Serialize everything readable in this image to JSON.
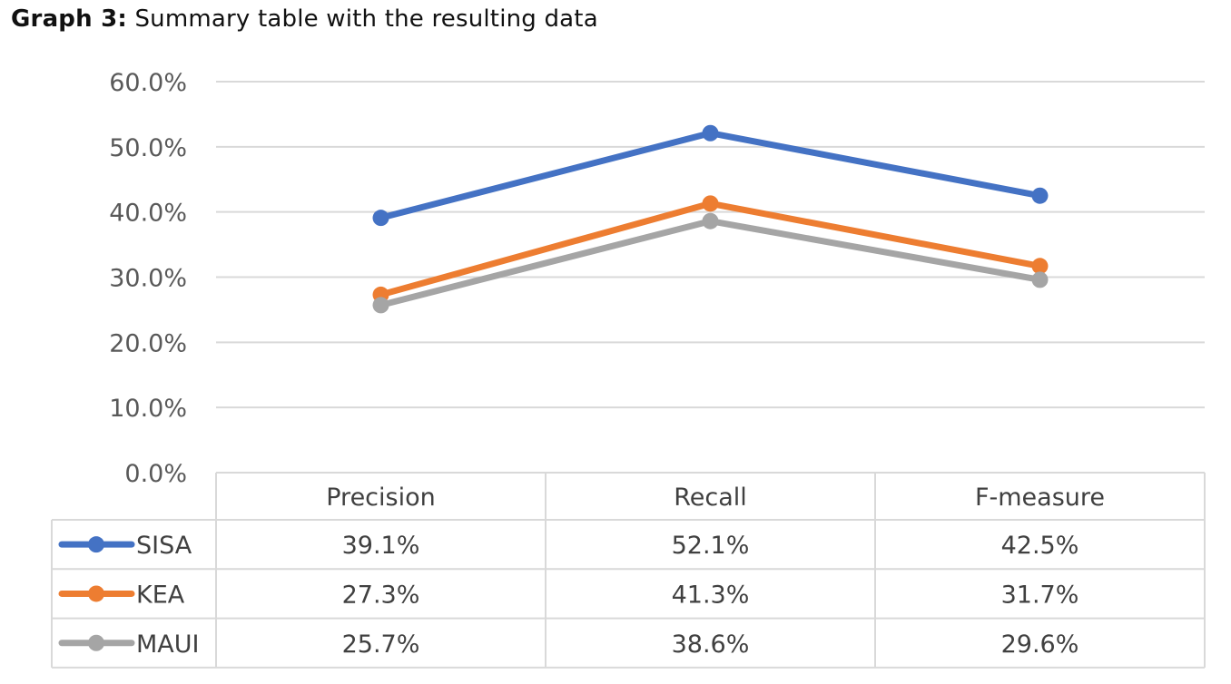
{
  "caption": {
    "label": "Graph 3:",
    "text": "Summary table with the resulting data"
  },
  "chart_data": {
    "type": "line",
    "categories": [
      "Precision",
      "Recall",
      "F-measure"
    ],
    "series": [
      {
        "name": "SISA",
        "values": [
          39.1,
          52.1,
          42.5
        ],
        "labels": [
          "39.1%",
          "52.1%",
          "42.5%"
        ],
        "color": "#4472C4"
      },
      {
        "name": "KEA",
        "values": [
          27.3,
          41.3,
          31.7
        ],
        "labels": [
          "27.3%",
          "41.3%",
          "31.7%"
        ],
        "color": "#ED7D31"
      },
      {
        "name": "MAUI",
        "values": [
          25.7,
          38.6,
          29.6
        ],
        "labels": [
          "25.7%",
          "38.6%",
          "29.6%"
        ],
        "color": "#A5A5A5"
      }
    ],
    "ylim": [
      0,
      60
    ],
    "yticks": [
      "0.0%",
      "10.0%",
      "20.0%",
      "30.0%",
      "40.0%",
      "50.0%",
      "60.0%"
    ],
    "grid": true,
    "legend": "data-table below chart"
  }
}
